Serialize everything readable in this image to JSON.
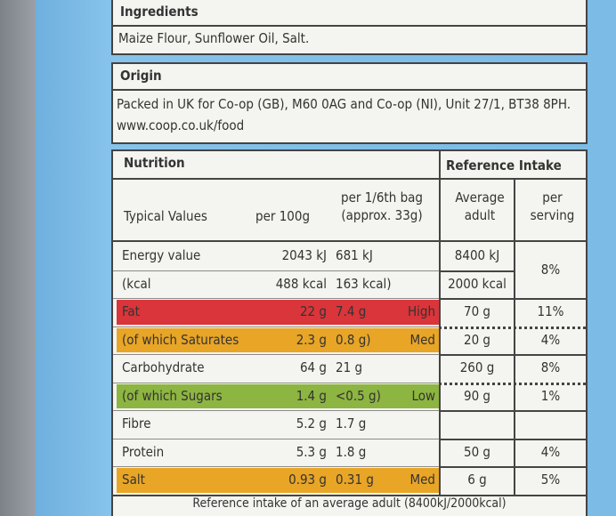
{
  "ingredients": {
    "title": "Ingredients",
    "text": "Maize Flour, Sunflower Oil, Salt."
  },
  "origin": {
    "title": "Origin",
    "lines": [
      "Packed in UK for Co-op (GB), M60 0AG and Co-op (NI), Unit 27/1, BT38 8PH.",
      "www.coop.co.uk/food"
    ]
  },
  "nutrition": {
    "title": "Nutrition",
    "reference_title": "Reference Intake",
    "headers": [
      "Typical Values",
      "per 100g",
      "per 1/6th bag (approx. 33g)",
      "Average adult",
      "per serving"
    ],
    "level_colors": {
      "High": "#d9353a",
      "Med": "#e8a526",
      "Low": "#8db541"
    },
    "rows": [
      {
        "name": "Energy value",
        "per_100g": "2043 kJ",
        "per_serving": "681 kJ",
        "ri": "8400 kJ",
        "ri_percent": "8%"
      },
      {
        "name": "(kcal",
        "per_100g": "488 kcal",
        "per_serving": "163 kcal)",
        "ri": "2000 kcal"
      },
      {
        "name": "Fat",
        "per_100g": "22 g",
        "per_serving": "7.4 g",
        "level": "High",
        "ri": "70 g",
        "ri_percent": "11%"
      },
      {
        "name": "(of which Saturates",
        "per_100g": "2.3 g",
        "per_serving": "0.8 g)",
        "level": "Med",
        "ri": "20 g",
        "ri_percent": "4%"
      },
      {
        "name": "Carbohydrate",
        "per_100g": "64 g",
        "per_serving": "21 g",
        "ri": "260 g",
        "ri_percent": "8%"
      },
      {
        "name": "(of which Sugars",
        "per_100g": "1.4 g",
        "per_serving": "<0.5 g)",
        "level": "Low",
        "ri": "90 g",
        "ri_percent": "1%"
      },
      {
        "name": "Fibre",
        "per_100g": "5.2 g",
        "per_serving": "1.7 g"
      },
      {
        "name": "Protein",
        "per_100g": "5.3 g",
        "per_serving": "1.8 g",
        "ri": "50 g",
        "ri_percent": "4%"
      },
      {
        "name": "Salt",
        "per_100g": "0.93 g",
        "per_serving": "0.31 g",
        "level": "Med",
        "ri": "6 g",
        "ri_percent": "5%"
      }
    ],
    "footnote": "Reference intake of an average adult (8400kJ/2000kcal)"
  }
}
